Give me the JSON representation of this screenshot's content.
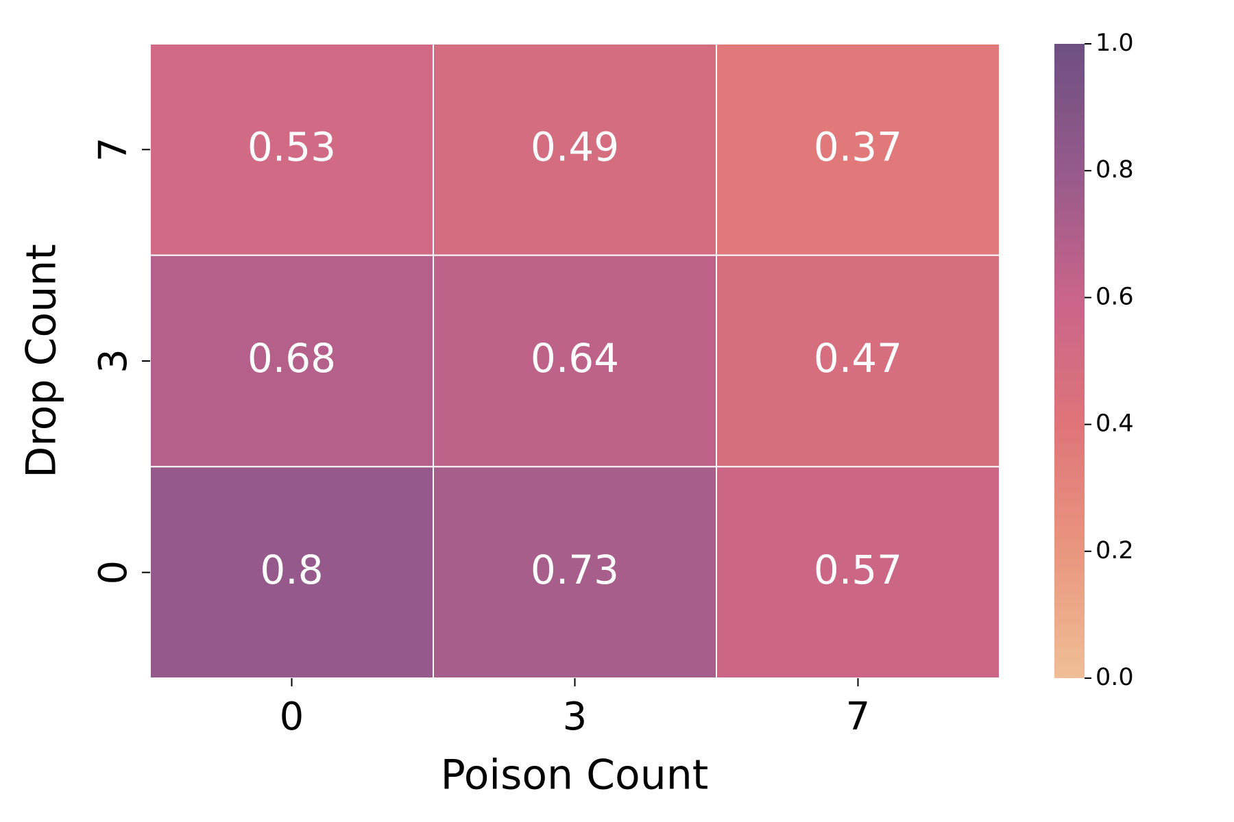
{
  "chart_data": {
    "type": "heatmap",
    "x_label": "Poison Count",
    "y_label": "Drop Count",
    "x_categories": [
      "0",
      "3",
      "7"
    ],
    "y_categories": [
      "7",
      "3",
      "0"
    ],
    "values": [
      [
        0.53,
        0.49,
        0.37
      ],
      [
        0.68,
        0.64,
        0.47
      ],
      [
        0.8,
        0.73,
        0.57
      ]
    ],
    "colormap": [
      "#efbe96",
      "#e9967f",
      "#df7479",
      "#c9648a",
      "#955a8b",
      "#6e4f82"
    ],
    "clim": [
      0,
      1
    ],
    "cticks": [
      {
        "value": 0,
        "label": "0.0"
      },
      0.2,
      0.4,
      0.6,
      0.8,
      {
        "value": 1,
        "label": "1.0"
      }
    ]
  }
}
